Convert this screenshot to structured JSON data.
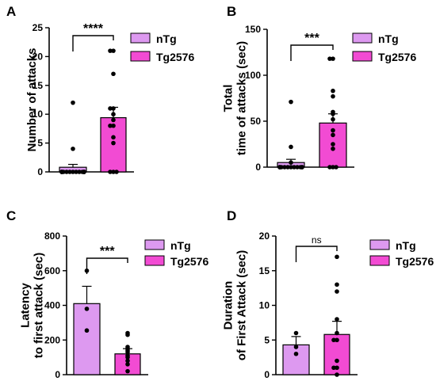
{
  "panels": [
    {
      "label": "A",
      "ylabel": [
        "Number of attacks"
      ],
      "ticks": [
        "0",
        "5",
        "10",
        "15",
        "20",
        "25"
      ],
      "sig": "****",
      "legend": [
        "nTg",
        "Tg2576"
      ]
    },
    {
      "label": "B",
      "ylabel": [
        "Total",
        "time of attacks (sec)"
      ],
      "ticks": [
        "0",
        "50",
        "100",
        "150"
      ],
      "sig": "***",
      "legend": [
        "nTg",
        "Tg2576"
      ]
    },
    {
      "label": "C",
      "ylabel": [
        "Latency",
        "to first attack (sec)"
      ],
      "ticks": [
        "0",
        "200",
        "400",
        "600",
        "800"
      ],
      "sig": "***",
      "legend": [
        "nTg",
        "Tg2576"
      ]
    },
    {
      "label": "D",
      "ylabel": [
        "Duration",
        "of First Attack (sec)"
      ],
      "ticks": [
        "0",
        "5",
        "10",
        "15",
        "20"
      ],
      "sig": "ns",
      "legend": [
        "nTg",
        "Tg2576"
      ]
    }
  ],
  "colors": {
    "nTg": "#dd99f0",
    "Tg2576": "#f24bd3",
    "ink": "#000000"
  },
  "chart_data": [
    {
      "type": "bar",
      "categories": [
        "nTg",
        "Tg2576"
      ],
      "ylabel": "Number of attacks",
      "ylim": [
        0,
        25
      ],
      "series": [
        {
          "name": "nTg",
          "mean": 0.8,
          "sem": 0.5,
          "points": [
            12,
            4,
            0,
            0,
            0,
            0,
            0,
            0,
            0,
            0,
            0,
            0,
            0,
            0,
            0,
            0,
            0
          ]
        },
        {
          "name": "Tg2576",
          "mean": 9.4,
          "sem": 1.8,
          "points": [
            21,
            21,
            17,
            11,
            11,
            10,
            9,
            8,
            8,
            6,
            5,
            0,
            0,
            0
          ]
        }
      ],
      "significance": "****"
    },
    {
      "type": "bar",
      "categories": [
        "nTg",
        "Tg2576"
      ],
      "ylabel": "Total time of attacks (sec)",
      "ylim": [
        0,
        150
      ],
      "series": [
        {
          "name": "nTg",
          "mean": 5,
          "sem": 3.5,
          "points": [
            71,
            22,
            5,
            0,
            0,
            0,
            0,
            0,
            0,
            0,
            0,
            0,
            0,
            0,
            0,
            0,
            0
          ]
        },
        {
          "name": "Tg2576",
          "mean": 48,
          "sem": 10,
          "points": [
            118,
            118,
            83,
            77,
            60,
            58,
            52,
            40,
            35,
            25,
            20,
            0,
            0,
            0
          ]
        }
      ],
      "significance": "***"
    },
    {
      "type": "bar",
      "categories": [
        "nTg",
        "Tg2576"
      ],
      "ylabel": "Latency to first attack (sec)",
      "ylim": [
        0,
        800
      ],
      "series": [
        {
          "name": "nTg",
          "mean": 410,
          "sem": 100,
          "points": [
            600,
            380,
            255
          ]
        },
        {
          "name": "Tg2576",
          "mean": 120,
          "sem": 30,
          "points": [
            240,
            230,
            160,
            150,
            140,
            130,
            110,
            100,
            80,
            60,
            20
          ]
        }
      ],
      "significance": "***"
    },
    {
      "type": "bar",
      "categories": [
        "nTg",
        "Tg2576"
      ],
      "ylabel": "Duration of First Attack (sec)",
      "ylim": [
        0,
        20
      ],
      "series": [
        {
          "name": "nTg",
          "mean": 4.3,
          "sem": 1.2,
          "points": [
            6,
            3,
            4
          ]
        },
        {
          "name": "Tg2576",
          "mean": 5.8,
          "sem": 1.9,
          "points": [
            17,
            13,
            12,
            8,
            6,
            5,
            5,
            2,
            1,
            1,
            0
          ]
        }
      ],
      "significance": "ns"
    }
  ]
}
